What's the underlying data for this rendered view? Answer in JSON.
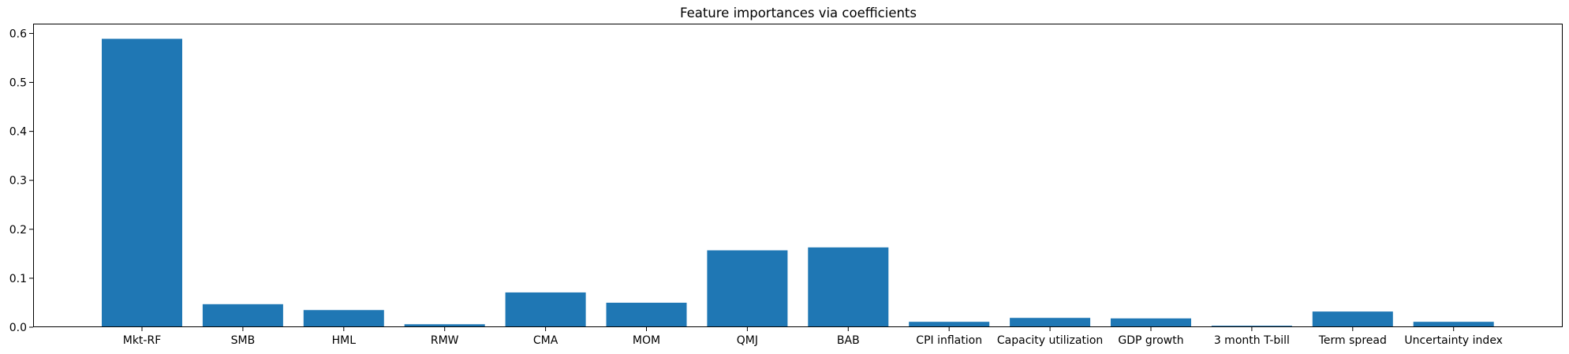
{
  "chart_data": {
    "type": "bar",
    "title": "Feature importances via coefficients",
    "xlabel": "",
    "ylabel": "",
    "categories": [
      "Mkt-RF",
      "SMB",
      "HML",
      "RMW",
      "CMA",
      "MOM",
      "QMJ",
      "BAB",
      "CPI inflation",
      "Capacity utilization",
      "GDP growth",
      "3 month T-bill",
      "Term spread",
      "Uncertainty index"
    ],
    "values": [
      0.589,
      0.047,
      0.035,
      0.006,
      0.071,
      0.05,
      0.157,
      0.163,
      0.011,
      0.019,
      0.018,
      0.003,
      0.032,
      0.011
    ],
    "ylim": [
      0,
      0.62
    ],
    "yticks": [
      0.0,
      0.1,
      0.2,
      0.3,
      0.4,
      0.5,
      0.6
    ],
    "ytick_labels": [
      "0.0",
      "0.1",
      "0.2",
      "0.3",
      "0.4",
      "0.5",
      "0.6"
    ],
    "grid": false,
    "bar_color": "#1f77b4"
  }
}
